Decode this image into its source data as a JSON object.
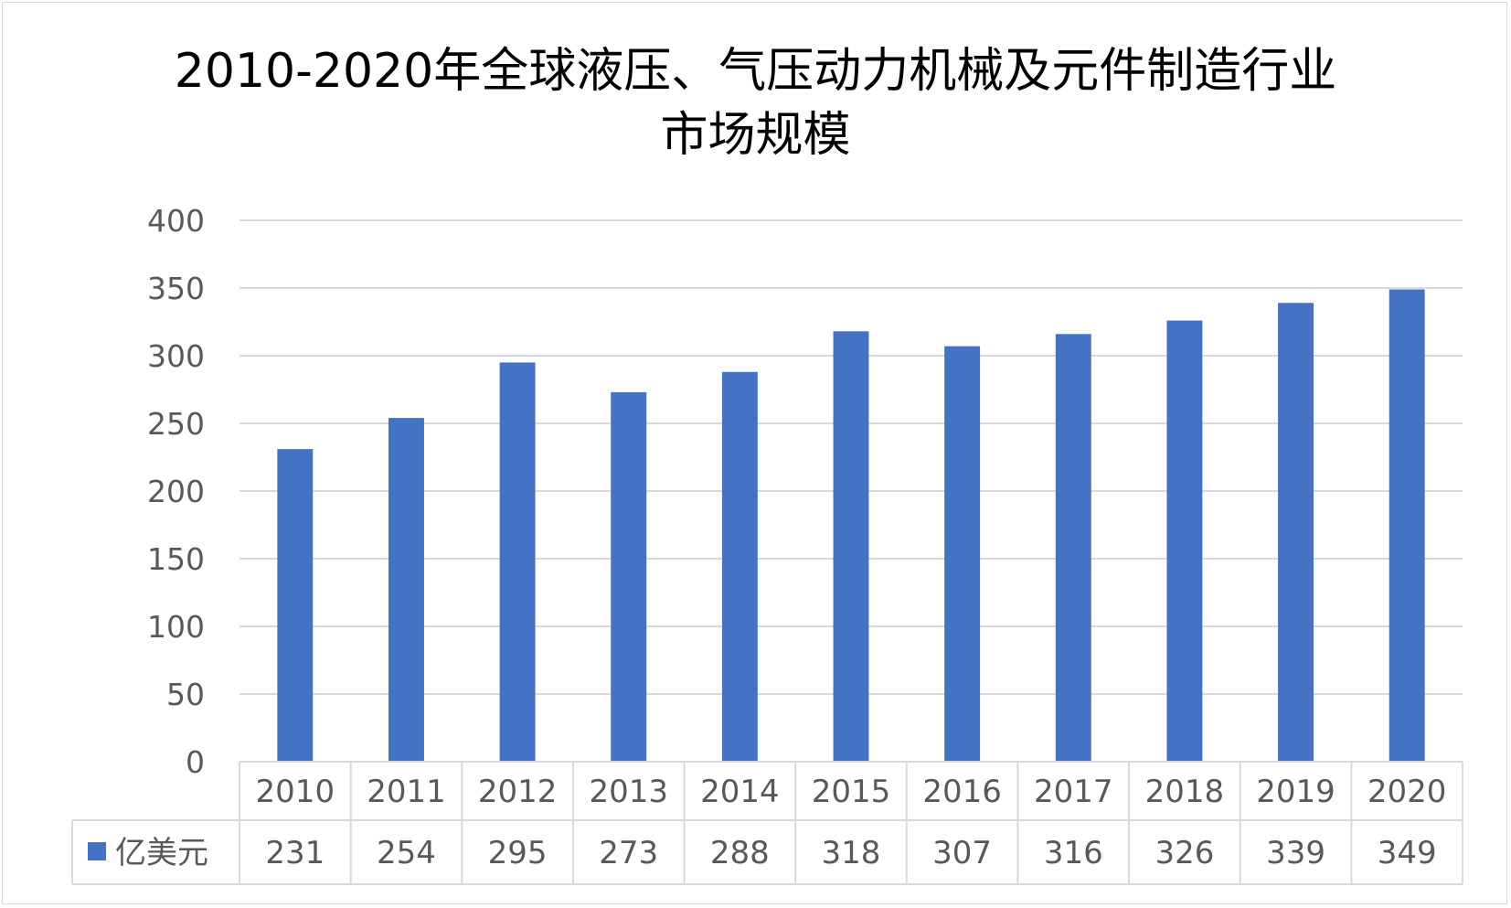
{
  "chart_data": {
    "type": "bar",
    "title": "2010-2020年全球液压、气压动力机械及元件制造行业",
    "subtitle": "市场规模",
    "categories": [
      "2010",
      "2011",
      "2012",
      "2013",
      "2014",
      "2015",
      "2016",
      "2017",
      "2018",
      "2019",
      "2020"
    ],
    "series": [
      {
        "name": "亿美元",
        "values": [
          231,
          254,
          295,
          273,
          288,
          318,
          307,
          316,
          326,
          339,
          349
        ],
        "color": "#4472c4"
      }
    ],
    "ylim": [
      0,
      400
    ],
    "yticks": [
      0,
      50,
      100,
      150,
      200,
      250,
      300,
      350,
      400
    ],
    "grid": true,
    "data_table": true,
    "legend": "data-table"
  }
}
